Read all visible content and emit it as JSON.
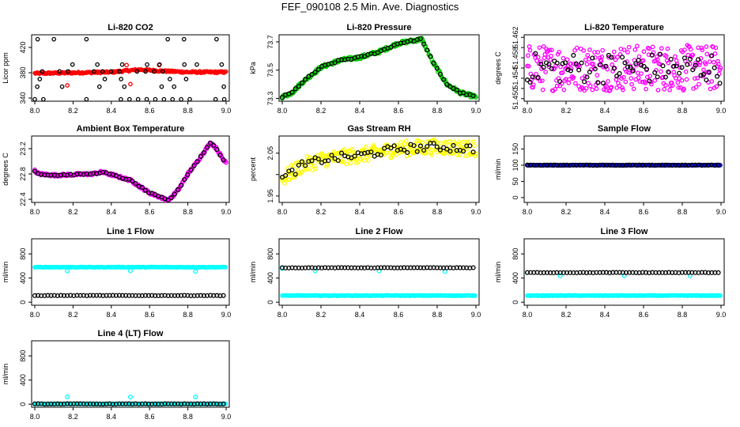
{
  "title": "FEF_090108  2.5 Min. Ave. Diagnostics",
  "colors": {
    "black": "#000000",
    "red": "#ff0000",
    "green": "#00cc00",
    "magenta": "#ff00ff",
    "yellow": "#ffff00",
    "cyan": "#00ffff",
    "blue": "#0000cc"
  },
  "chart_data": [
    {
      "type": "scatter",
      "title": "Li-820 CO2",
      "ylabel": "Licor ppm",
      "xlim": [
        8.0,
        9.0
      ],
      "ylim": [
        335,
        440
      ],
      "xticks": [
        "8.0",
        "8.2",
        "8.4",
        "8.6",
        "8.8",
        "9.0"
      ],
      "yticks": [
        340,
        380,
        420
      ],
      "series": [
        {
          "color": "#ff0000",
          "style": "band",
          "y_points": [
            [
              8.0,
              379
            ],
            [
              8.2,
              380
            ],
            [
              8.4,
              381
            ],
            [
              8.55,
              385
            ],
            [
              8.65,
              383
            ],
            [
              8.8,
              381
            ],
            [
              9.0,
              381
            ]
          ],
          "spread": 1.5
        },
        {
          "color": "#000000",
          "style": "levels",
          "levels": [
            338,
            358,
            370,
            382,
            393,
            433
          ]
        }
      ]
    },
    {
      "type": "scatter",
      "title": "Li-820 Pressure",
      "ylabel": "kPa",
      "xlim": [
        8.0,
        9.0
      ],
      "ylim": [
        73.28,
        73.75
      ],
      "xticks": [
        "8.0",
        "8.2",
        "8.4",
        "8.6",
        "8.8",
        "9.0"
      ],
      "yticks": [
        73.3,
        73.5,
        73.7
      ],
      "series": [
        {
          "color": "#00cc00",
          "style": "curve",
          "y_points": [
            [
              8.0,
              73.31
            ],
            [
              8.05,
              73.34
            ],
            [
              8.1,
              73.41
            ],
            [
              8.2,
              73.52
            ],
            [
              8.3,
              73.57
            ],
            [
              8.4,
              73.59
            ],
            [
              8.5,
              73.63
            ],
            [
              8.6,
              73.69
            ],
            [
              8.72,
              73.72
            ],
            [
              8.78,
              73.55
            ],
            [
              8.85,
              73.4
            ],
            [
              8.92,
              73.34
            ],
            [
              9.0,
              73.31
            ]
          ],
          "spread": 0.012
        },
        {
          "color": "#000000",
          "style": "curve-sparse",
          "y_points": [
            [
              8.0,
              73.31
            ],
            [
              8.05,
              73.34
            ],
            [
              8.1,
              73.41
            ],
            [
              8.2,
              73.52
            ],
            [
              8.3,
              73.57
            ],
            [
              8.4,
              73.59
            ],
            [
              8.5,
              73.63
            ],
            [
              8.6,
              73.69
            ],
            [
              8.72,
              73.72
            ],
            [
              8.78,
              73.55
            ],
            [
              8.85,
              73.4
            ],
            [
              8.92,
              73.34
            ],
            [
              9.0,
              73.31
            ]
          ],
          "spread": 0.006
        }
      ]
    },
    {
      "type": "scatter",
      "title": "Li-820 Temperature",
      "ylabel": "degrees C",
      "xlim": [
        8.0,
        9.0
      ],
      "ylim": [
        51.4495,
        51.4625
      ],
      "xticks": [
        "8.0",
        "8.2",
        "8.4",
        "8.6",
        "8.8",
        "9.0"
      ],
      "yticks": [
        51.45,
        51.452,
        51.454,
        51.456,
        51.458,
        51.46,
        51.462
      ],
      "ytick_labels": [
        "51.450",
        "",
        "51.454",
        "",
        "51.458",
        "",
        "51.462"
      ],
      "series": [
        {
          "color": "#ff00ff",
          "style": "noise",
          "center": 51.456,
          "spread": 0.0045
        },
        {
          "color": "#000000",
          "style": "noise-sparse",
          "center": 51.456,
          "spread": 0.003
        }
      ]
    },
    {
      "type": "scatter",
      "title": "Ambient Box Temperature",
      "ylabel": "degrees C",
      "xlim": [
        8.0,
        9.0
      ],
      "ylim": [
        22.35,
        23.4
      ],
      "xticks": [
        "8.0",
        "8.2",
        "8.4",
        "8.6",
        "8.8",
        "9.0"
      ],
      "yticks": [
        22.4,
        22.8,
        23.2
      ],
      "series": [
        {
          "color": "#ff00ff",
          "style": "curve",
          "y_points": [
            [
              8.0,
              22.85
            ],
            [
              8.02,
              22.8
            ],
            [
              8.1,
              22.78
            ],
            [
              8.2,
              22.79
            ],
            [
              8.3,
              22.8
            ],
            [
              8.35,
              22.83
            ],
            [
              8.4,
              22.79
            ],
            [
              8.5,
              22.7
            ],
            [
              8.6,
              22.5
            ],
            [
              8.7,
              22.38
            ],
            [
              8.75,
              22.55
            ],
            [
              8.8,
              22.8
            ],
            [
              8.85,
              23.0
            ],
            [
              8.92,
              23.3
            ],
            [
              8.95,
              23.2
            ],
            [
              8.99,
              23.0
            ]
          ],
          "spread": 0.02
        },
        {
          "color": "#000000",
          "style": "curve-sparse",
          "y_points": [
            [
              8.0,
              22.85
            ],
            [
              8.02,
              22.8
            ],
            [
              8.1,
              22.78
            ],
            [
              8.2,
              22.79
            ],
            [
              8.3,
              22.8
            ],
            [
              8.35,
              22.83
            ],
            [
              8.4,
              22.79
            ],
            [
              8.5,
              22.7
            ],
            [
              8.6,
              22.5
            ],
            [
              8.7,
              22.38
            ],
            [
              8.75,
              22.55
            ],
            [
              8.8,
              22.8
            ],
            [
              8.85,
              23.0
            ],
            [
              8.92,
              23.3
            ],
            [
              8.95,
              23.2
            ],
            [
              8.99,
              23.0
            ]
          ],
          "spread": 0.01
        }
      ]
    },
    {
      "type": "scatter",
      "title": "Gas Stream RH",
      "ylabel": "percent",
      "xlim": [
        8.0,
        9.0
      ],
      "ylim": [
        1.935,
        2.09
      ],
      "xticks": [
        "8.0",
        "8.2",
        "8.4",
        "8.6",
        "8.8",
        "9.0"
      ],
      "yticks": [
        1.95,
        2.0,
        2.05
      ],
      "ytick_labels": [
        "1.95",
        "",
        "2.05"
      ],
      "series": [
        {
          "color": "#ffff00",
          "style": "curve",
          "y_points": [
            [
              8.0,
              1.99
            ],
            [
              8.1,
              2.02
            ],
            [
              8.2,
              2.035
            ],
            [
              8.4,
              2.045
            ],
            [
              8.6,
              2.06
            ],
            [
              8.8,
              2.065
            ],
            [
              9.0,
              2.06
            ]
          ],
          "spread": 0.018
        },
        {
          "color": "#000000",
          "style": "curve-sparse",
          "y_points": [
            [
              8.0,
              1.99
            ],
            [
              8.1,
              2.02
            ],
            [
              8.2,
              2.035
            ],
            [
              8.4,
              2.045
            ],
            [
              8.6,
              2.06
            ],
            [
              8.8,
              2.065
            ],
            [
              9.0,
              2.06
            ]
          ],
          "spread": 0.01
        }
      ]
    },
    {
      "type": "scatter",
      "title": "Sample Flow",
      "ylabel": "ml/min",
      "xlim": [
        8.0,
        9.0
      ],
      "ylim": [
        -15,
        190
      ],
      "xticks": [
        "8.0",
        "8.2",
        "8.4",
        "8.6",
        "8.8",
        "9.0"
      ],
      "yticks": [
        0,
        50,
        100,
        150
      ],
      "series": [
        {
          "color": "#0000cc",
          "style": "flat",
          "value": 100
        },
        {
          "color": "#000000",
          "style": "flat-sparse",
          "value": 100
        }
      ]
    },
    {
      "type": "scatter",
      "title": "Line 1 Flow",
      "ylabel": "ml/min",
      "xlim": [
        8.0,
        9.0
      ],
      "ylim": [
        -50,
        1050
      ],
      "xticks": [
        "8.0",
        "8.2",
        "8.4",
        "8.6",
        "8.8",
        "9.0"
      ],
      "yticks": [
        0,
        400,
        800
      ],
      "series": [
        {
          "color": "#00ffff",
          "style": "flat",
          "value": 580,
          "dips": [
            [
              8.17,
              520
            ],
            [
              8.5,
              520
            ],
            [
              8.84,
              510
            ]
          ]
        },
        {
          "color": "#000000",
          "style": "flat-sparse",
          "value": 110
        }
      ]
    },
    {
      "type": "scatter",
      "title": "Line 2 Flow",
      "ylabel": "ml/min",
      "xlim": [
        8.0,
        9.0
      ],
      "ylim": [
        -50,
        1050
      ],
      "xticks": [
        "8.0",
        "8.2",
        "8.4",
        "8.6",
        "8.8",
        "9.0"
      ],
      "yticks": [
        0,
        400,
        800
      ],
      "series": [
        {
          "color": "#00ffff",
          "style": "flat",
          "value": 110,
          "extras": [
            [
              8.0,
              560
            ],
            [
              8.17,
              520
            ],
            [
              8.5,
              520
            ],
            [
              8.84,
              510
            ]
          ]
        },
        {
          "color": "#000000",
          "style": "flat-sparse",
          "value": 570
        }
      ]
    },
    {
      "type": "scatter",
      "title": "Line 3 Flow",
      "ylabel": "ml/min",
      "xlim": [
        8.0,
        9.0
      ],
      "ylim": [
        -50,
        1050
      ],
      "xticks": [
        "8.0",
        "8.2",
        "8.4",
        "8.6",
        "8.8",
        "9.0"
      ],
      "yticks": [
        0,
        400,
        800
      ],
      "series": [
        {
          "color": "#00ffff",
          "style": "flat",
          "value": 110,
          "extras": [
            [
              8.0,
              490
            ],
            [
              8.17,
              440
            ],
            [
              8.5,
              440
            ],
            [
              8.84,
              440
            ]
          ]
        },
        {
          "color": "#000000",
          "style": "flat-sparse",
          "value": 490
        }
      ]
    },
    {
      "type": "scatter",
      "title": "Line 4 (LT) Flow",
      "ylabel": "ml/min",
      "xlim": [
        8.0,
        9.0
      ],
      "ylim": [
        -50,
        1050
      ],
      "xticks": [
        "8.0",
        "8.2",
        "8.4",
        "8.6",
        "8.8",
        "9.0"
      ],
      "yticks": [
        0,
        400,
        800
      ],
      "series": [
        {
          "color": "#00ffff",
          "style": "flat",
          "value": 5,
          "extras": [
            [
              8.17,
              120
            ],
            [
              8.5,
              120
            ],
            [
              8.84,
              120
            ]
          ]
        },
        {
          "color": "#000000",
          "style": "flat-sparse",
          "value": 5
        }
      ]
    }
  ]
}
